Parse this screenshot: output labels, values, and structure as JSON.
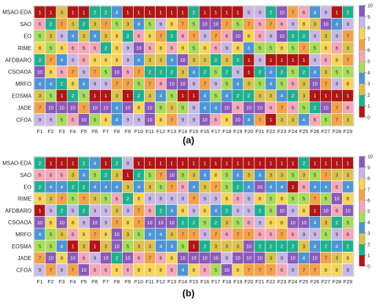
{
  "chart_data": [
    {
      "type": "heatmap",
      "panel_label": "(a)",
      "rows": [
        "MSAO-EDA",
        "SAO",
        "EO",
        "RIME",
        "AFDBARO",
        "CSOAOA",
        "MRFO",
        "EOSMA",
        "JADE",
        "CFOA"
      ],
      "columns": [
        "F1",
        "F2",
        "F3",
        "F4",
        "F5",
        "F6",
        "F7",
        "F8",
        "F9",
        "F10",
        "F11",
        "F12",
        "F13",
        "F14",
        "F15",
        "F16",
        "F17",
        "F18",
        "F19",
        "F20",
        "F21",
        "F22",
        "F23",
        "F24",
        "F25",
        "F26",
        "F27",
        "F28",
        "F29"
      ],
      "values": [
        [
          1,
          1,
          3,
          1,
          1,
          2,
          2,
          4,
          1,
          1,
          1,
          1,
          1,
          1,
          2,
          1,
          1,
          1,
          1,
          9,
          9,
          2,
          10,
          7,
          6,
          4,
          9,
          1,
          2
        ],
        [
          6,
          2,
          7,
          3,
          2,
          3,
          7,
          5,
          3,
          4,
          5,
          9,
          8,
          7,
          5,
          10,
          10,
          7,
          5,
          7,
          6,
          7,
          6,
          9,
          8,
          3,
          10,
          4,
          9
        ],
        [
          5,
          3,
          9,
          4,
          3,
          4,
          3,
          8,
          2,
          6,
          8,
          7,
          2,
          6,
          7,
          9,
          7,
          6,
          10,
          8,
          6,
          9,
          10,
          2,
          2,
          9,
          3,
          9,
          7
        ],
        [
          8,
          5,
          8,
          6,
          6,
          6,
          2,
          8,
          9,
          10,
          6,
          8,
          6,
          8,
          5,
          8,
          6,
          9,
          8,
          4,
          5,
          5,
          8,
          5,
          7,
          5,
          8,
          6,
          3
        ],
        [
          2,
          7,
          4,
          9,
          6,
          8,
          8,
          8,
          9,
          4,
          3,
          3,
          4,
          10,
          3,
          3,
          2,
          3,
          2,
          1,
          9,
          1,
          1,
          1,
          1,
          9,
          6,
          8,
          7
        ],
        [
          10,
          8,
          6,
          7,
          9,
          7,
          5,
          10,
          6,
          7,
          2,
          2,
          2,
          3,
          4,
          2,
          5,
          2,
          9,
          1,
          2,
          4,
          2,
          5,
          2,
          4,
          3,
          5,
          5
        ],
        [
          4,
          4,
          2,
          8,
          4,
          9,
          9,
          7,
          7,
          5,
          7,
          6,
          10,
          10,
          9,
          7,
          9,
          5,
          4,
          3,
          5,
          4,
          5,
          6,
          3,
          10,
          7,
          9,
          8
        ],
        [
          3,
          5,
          1,
          2,
          5,
          1,
          1,
          3,
          1,
          2,
          3,
          4,
          5,
          1,
          1,
          4,
          5,
          4,
          2,
          2,
          3,
          3,
          4,
          2,
          3,
          1,
          1,
          1,
          1
        ],
        [
          7,
          10,
          10,
          10,
          7,
          10,
          10,
          4,
          10,
          8,
          10,
          5,
          3,
          5,
          9,
          4,
          4,
          10,
          6,
          10,
          10,
          6,
          7,
          6,
          5,
          2,
          10,
          7,
          6
        ],
        [
          9,
          9,
          5,
          6,
          10,
          5,
          8,
          4,
          9,
          9,
          10,
          8,
          7,
          9,
          9,
          10,
          6,
          8,
          10,
          4,
          7,
          1,
          3,
          3,
          4,
          6,
          5,
          7,
          3
        ]
      ]
    },
    {
      "type": "heatmap",
      "panel_label": "(b)",
      "rows": [
        "MSAO-EDA",
        "SAO",
        "EO",
        "RIME",
        "AFDBARO",
        "CSOAOA",
        "MRFO",
        "EOSMA",
        "JADE",
        "CFOA"
      ],
      "columns": [
        "F1",
        "F2",
        "F3",
        "F4",
        "F5",
        "F6",
        "F7",
        "F8",
        "F9",
        "F10",
        "F11",
        "F12",
        "F13",
        "F14",
        "F15",
        "F16",
        "F17",
        "F18",
        "F19",
        "F20",
        "F21",
        "F22",
        "F23",
        "F24",
        "F25",
        "F26",
        "F27",
        "F28",
        "F29"
      ],
      "values": [
        [
          2,
          1,
          1,
          1,
          2,
          4,
          1,
          2,
          9,
          1,
          1,
          1,
          1,
          1,
          1,
          1,
          1,
          1,
          1,
          1,
          1,
          1,
          1,
          1,
          2,
          1,
          1,
          1,
          1
        ],
        [
          6,
          6,
          6,
          3,
          4,
          5,
          2,
          3,
          1,
          2,
          5,
          7,
          10,
          5,
          3,
          4,
          8,
          5,
          4,
          3,
          4,
          3,
          3,
          5,
          3,
          5,
          7,
          3,
          3
        ],
        [
          2,
          4,
          4,
          2,
          2,
          4,
          4,
          4,
          3,
          4,
          3,
          5,
          7,
          6,
          4,
          3,
          7,
          5,
          2,
          4,
          10,
          4,
          4,
          1,
          6,
          4,
          4,
          6,
          4
        ],
        [
          8,
          3,
          7,
          5,
          7,
          3,
          5,
          6,
          2,
          8,
          9,
          9,
          9,
          9,
          7,
          9,
          9,
          8,
          6,
          9,
          8,
          5,
          8,
          5,
          5,
          7,
          5,
          10,
          8
        ],
        [
          1,
          9,
          2,
          9,
          2,
          9,
          9,
          3,
          9,
          7,
          6,
          2,
          4,
          8,
          9,
          8,
          4,
          2,
          9,
          9,
          2,
          5,
          10,
          9,
          8,
          1,
          10,
          6,
          10
        ],
        [
          10,
          8,
          10,
          8,
          9,
          10,
          9,
          7,
          8,
          7,
          10,
          10,
          10,
          2,
          2,
          5,
          2,
          3,
          5,
          6,
          9,
          8,
          8,
          10,
          10,
          4,
          3,
          2,
          5
        ],
        [
          4,
          5,
          3,
          6,
          8,
          7,
          8,
          10,
          3,
          5,
          4,
          4,
          3,
          7,
          7,
          9,
          7,
          6,
          7,
          7,
          6,
          6,
          7,
          6,
          9,
          9,
          5,
          9,
          6
        ],
        [
          5,
          5,
          4,
          1,
          3,
          1,
          3,
          10,
          5,
          3,
          3,
          4,
          4,
          5,
          1,
          2,
          3,
          3,
          3,
          10,
          2,
          2,
          2,
          2,
          3,
          4,
          2,
          4,
          2
        ],
        [
          7,
          10,
          8,
          10,
          6,
          9,
          10,
          2,
          10,
          6,
          7,
          6,
          8,
          10,
          10,
          10,
          10,
          9,
          10,
          10,
          10,
          3,
          9,
          10,
          4,
          10,
          7,
          3,
          8
        ],
        [
          9,
          7,
          9,
          7,
          10,
          6,
          6,
          8,
          6,
          8,
          8,
          8,
          6,
          4,
          8,
          6,
          5,
          10,
          8,
          7,
          7,
          7,
          6,
          9,
          7,
          7,
          8,
          8,
          9
        ]
      ]
    }
  ],
  "colorbar": {
    "ticks": [
      0,
      1,
      2,
      3,
      4,
      5,
      6,
      7,
      8,
      9,
      10
    ]
  },
  "palette": {
    "1": "#b01616",
    "2": "#21b08e",
    "3": "#dcc24e",
    "4": "#4f95d4",
    "5": "#a8dc5c",
    "6": "#f4a8b8",
    "7": "#f2a34a",
    "8": "#f7d55a",
    "9": "#c9b8e4",
    "10": "#8a5ab8",
    "text_light": "#ffffff",
    "text_dark": "#333333",
    "grid_line": "#ffffff",
    "border": "#777777"
  }
}
